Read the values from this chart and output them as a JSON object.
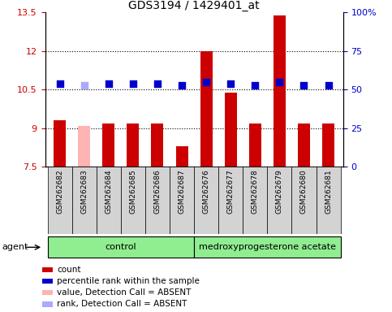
{
  "title": "GDS3194 / 1429401_at",
  "samples": [
    "GSM262682",
    "GSM262683",
    "GSM262684",
    "GSM262685",
    "GSM262686",
    "GSM262687",
    "GSM262676",
    "GSM262677",
    "GSM262678",
    "GSM262679",
    "GSM262680",
    "GSM262681"
  ],
  "bar_values": [
    9.3,
    9.1,
    9.2,
    9.2,
    9.2,
    8.3,
    12.0,
    10.4,
    9.2,
    13.4,
    9.2,
    9.2
  ],
  "bar_colors": [
    "#cc0000",
    "#ffb3b3",
    "#cc0000",
    "#cc0000",
    "#cc0000",
    "#cc0000",
    "#cc0000",
    "#cc0000",
    "#cc0000",
    "#cc0000",
    "#cc0000",
    "#cc0000"
  ],
  "rank_values": [
    54,
    53,
    54,
    54,
    54,
    53,
    55,
    54,
    53,
    55,
    53,
    53
  ],
  "rank_colors": [
    "#0000cc",
    "#aaaaff",
    "#0000cc",
    "#0000cc",
    "#0000cc",
    "#0000cc",
    "#0000cc",
    "#0000cc",
    "#0000cc",
    "#0000cc",
    "#0000cc",
    "#0000cc"
  ],
  "absent_mask": [
    false,
    true,
    false,
    false,
    false,
    false,
    false,
    false,
    false,
    false,
    false,
    false
  ],
  "ylim_left": [
    7.5,
    13.5
  ],
  "ylim_right": [
    0,
    100
  ],
  "yticks_left": [
    7.5,
    9.0,
    10.5,
    12.0,
    13.5
  ],
  "ytick_labels_left": [
    "7.5",
    "9",
    "10.5",
    "12",
    "13.5"
  ],
  "yticks_right": [
    0,
    25,
    50,
    75,
    100
  ],
  "ytick_labels_right": [
    "0",
    "25",
    "50",
    "75",
    "100%"
  ],
  "hlines": [
    9.0,
    10.5,
    12.0
  ],
  "n_control": 6,
  "n_treatment": 6,
  "control_label": "control",
  "treatment_label": "medroxyprogesterone acetate",
  "agent_label": "agent",
  "legend_items": [
    {
      "color": "#cc0000",
      "label": "count"
    },
    {
      "color": "#0000cc",
      "label": "percentile rank within the sample"
    },
    {
      "color": "#ffb3b3",
      "label": "value, Detection Call = ABSENT"
    },
    {
      "color": "#aaaaff",
      "label": "rank, Detection Call = ABSENT"
    }
  ],
  "bar_width": 0.5,
  "rank_marker_size": 28,
  "bg_plot": "#ffffff",
  "bg_xticklabels": "#d3d3d3",
  "bg_control": "#90ee90",
  "bg_treatment": "#90ee90",
  "left_tick_color": "#cc0000",
  "right_tick_color": "#0000cc",
  "fig_width": 4.83,
  "fig_height": 3.84,
  "dpi": 100
}
